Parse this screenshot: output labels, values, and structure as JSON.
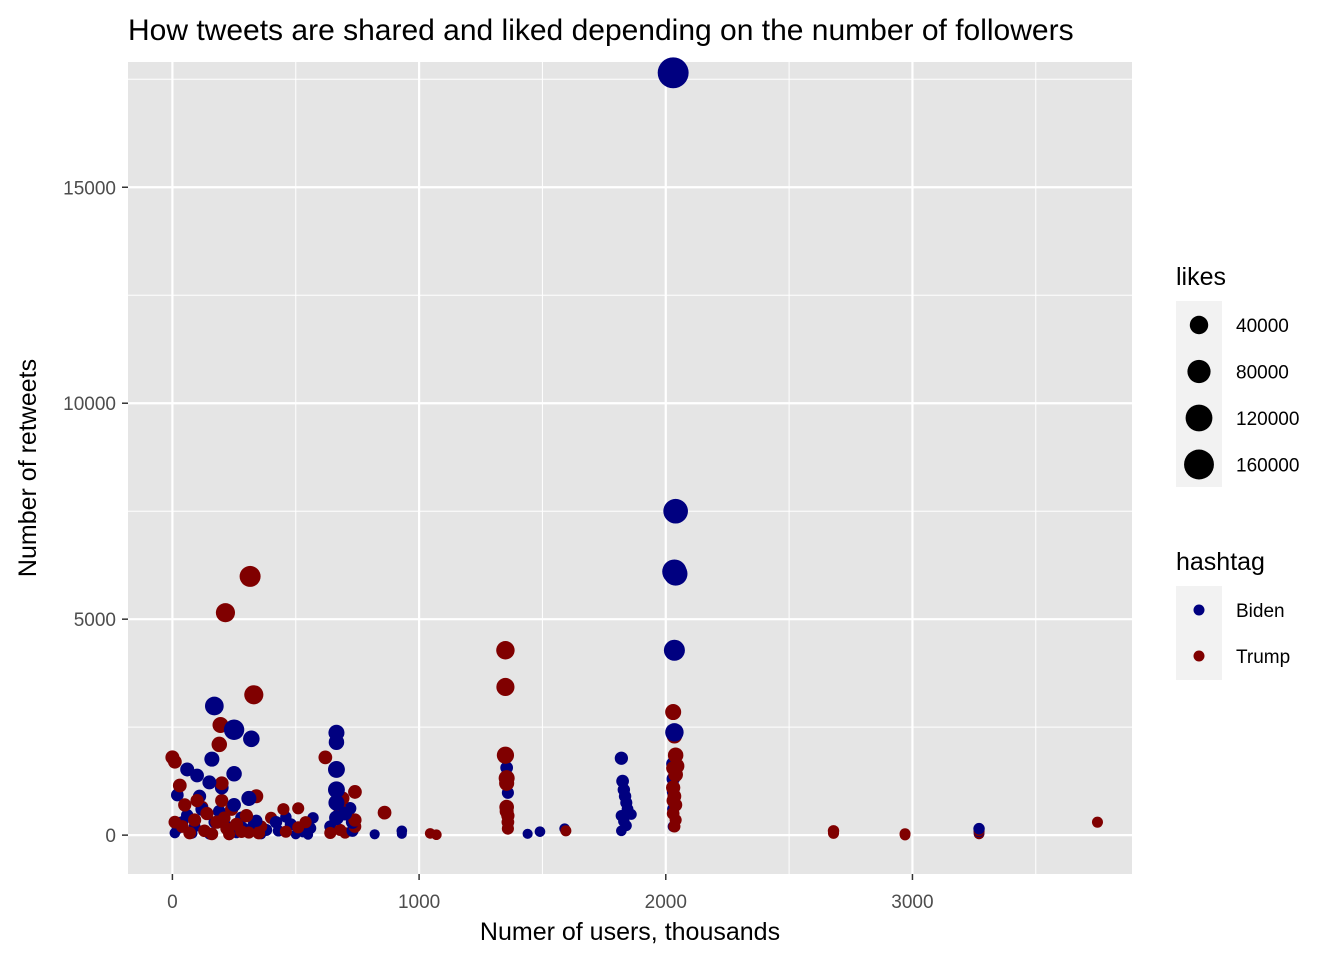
{
  "chart_data": {
    "type": "scatter",
    "title": "How tweets are shared and liked depending on the number of followers",
    "xlabel": "Numer of users, thousands",
    "ylabel": "Number of retweets",
    "xlim": [
      -180,
      3890
    ],
    "ylim": [
      -900,
      17900
    ],
    "x_ticks": [
      0,
      1000,
      2000,
      3000
    ],
    "y_ticks": [
      0,
      5000,
      10000,
      15000
    ],
    "grid": true,
    "legend_position": "right",
    "colors": {
      "Biden": "#000080",
      "Trump": "#800000",
      "panel": "#e5e5e5",
      "grid": "#ffffff"
    },
    "size_legend": {
      "title": "likes",
      "breaks": [
        40000,
        80000,
        120000,
        160000
      ]
    },
    "color_legend": {
      "title": "hashtag",
      "labels": [
        "Biden",
        "Trump"
      ]
    },
    "series": [
      {
        "name": "Biden",
        "points": [
          [
            2030,
            17650,
            175000
          ],
          [
            2040,
            7500,
            95000
          ],
          [
            2035,
            6100,
            92000
          ],
          [
            2040,
            6050,
            85000
          ],
          [
            2035,
            4280,
            60000
          ],
          [
            2035,
            2380,
            40000
          ],
          [
            2030,
            1650,
            15000
          ],
          [
            2030,
            1300,
            12000
          ],
          [
            2030,
            1000,
            10000
          ],
          [
            2030,
            600,
            8000
          ],
          [
            2030,
            200,
            5000
          ],
          [
            1820,
            1780,
            12000
          ],
          [
            1825,
            1250,
            10000
          ],
          [
            1830,
            1050,
            9000
          ],
          [
            1835,
            900,
            9000
          ],
          [
            1840,
            750,
            8000
          ],
          [
            1845,
            600,
            7000
          ],
          [
            1820,
            450,
            6000
          ],
          [
            1830,
            320,
            6000
          ],
          [
            1840,
            220,
            5000
          ],
          [
            1860,
            480,
            5000
          ],
          [
            1820,
            100,
            4000
          ],
          [
            1355,
            1560,
            10000
          ],
          [
            1355,
            1250,
            9000
          ],
          [
            1360,
            980,
            8000
          ],
          [
            1360,
            450,
            6000
          ],
          [
            1360,
            200,
            5000
          ],
          [
            1440,
            30,
            3000
          ],
          [
            1490,
            80,
            4000
          ],
          [
            1590,
            150,
            4000
          ],
          [
            930,
            100,
            4000
          ],
          [
            930,
            30,
            3000
          ],
          [
            820,
            20,
            3000
          ],
          [
            665,
            2370,
            25000
          ],
          [
            665,
            2150,
            22000
          ],
          [
            665,
            1520,
            30000
          ],
          [
            665,
            1050,
            30000
          ],
          [
            665,
            750,
            25000
          ],
          [
            665,
            400,
            18000
          ],
          [
            700,
            500,
            15000
          ],
          [
            730,
            300,
            12000
          ],
          [
            730,
            100,
            8000
          ],
          [
            720,
            620,
            10000
          ],
          [
            640,
            200,
            8000
          ],
          [
            170,
            2990,
            42000
          ],
          [
            250,
            2440,
            55000
          ],
          [
            320,
            2230,
            28000
          ],
          [
            250,
            1420,
            22000
          ],
          [
            160,
            1760,
            20000
          ],
          [
            60,
            1520,
            15000
          ],
          [
            100,
            1380,
            14000
          ],
          [
            150,
            1220,
            15000
          ],
          [
            200,
            1100,
            14000
          ],
          [
            110,
            900,
            12000
          ],
          [
            310,
            850,
            20000
          ],
          [
            20,
            930,
            10000
          ],
          [
            250,
            700,
            14000
          ],
          [
            120,
            600,
            12000
          ],
          [
            190,
            550,
            10000
          ],
          [
            60,
            460,
            9000
          ],
          [
            280,
            400,
            10000
          ],
          [
            340,
            330,
            9000
          ],
          [
            420,
            300,
            9000
          ],
          [
            480,
            250,
            8000
          ],
          [
            380,
            120,
            8000
          ],
          [
            290,
            150,
            7000
          ],
          [
            220,
            200,
            8000
          ],
          [
            90,
            200,
            7000
          ],
          [
            20,
            150,
            6000
          ],
          [
            40,
            300,
            8000
          ],
          [
            170,
            300,
            7000
          ],
          [
            330,
            250,
            8000
          ],
          [
            430,
            100,
            6000
          ],
          [
            530,
            80,
            6000
          ],
          [
            560,
            160,
            6000
          ],
          [
            10,
            50,
            4000
          ],
          [
            80,
            40,
            4000
          ],
          [
            150,
            20,
            4000
          ],
          [
            260,
            50,
            4000
          ],
          [
            360,
            20,
            3000
          ],
          [
            500,
            20,
            3000
          ],
          [
            550,
            10,
            3000
          ],
          [
            570,
            400,
            6000
          ],
          [
            460,
            420,
            6000
          ],
          [
            3270,
            150,
            6000
          ],
          [
            3270,
            80,
            5000
          ],
          [
            3270,
            30,
            4000
          ]
        ]
      },
      {
        "name": "Trump",
        "points": [
          [
            315,
            5990,
            60000
          ],
          [
            215,
            5150,
            45000
          ],
          [
            330,
            3250,
            45000
          ],
          [
            195,
            2550,
            25000
          ],
          [
            190,
            2100,
            22000
          ],
          [
            0,
            1800,
            15000
          ],
          [
            10,
            1700,
            14000
          ],
          [
            30,
            1150,
            14000
          ],
          [
            200,
            1200,
            14000
          ],
          [
            340,
            900,
            15000
          ],
          [
            100,
            800,
            12000
          ],
          [
            200,
            800,
            12000
          ],
          [
            50,
            700,
            12000
          ],
          [
            240,
            600,
            12000
          ],
          [
            140,
            500,
            12000
          ],
          [
            300,
            450,
            12000
          ],
          [
            90,
            350,
            12000
          ],
          [
            180,
            300,
            12000
          ],
          [
            260,
            250,
            12000
          ],
          [
            40,
            200,
            10000
          ],
          [
            220,
            150,
            10000
          ],
          [
            130,
            100,
            10000
          ],
          [
            280,
            80,
            10000
          ],
          [
            350,
            50,
            10000
          ],
          [
            10,
            300,
            10000
          ],
          [
            70,
            50,
            10000
          ],
          [
            160,
            30,
            10000
          ],
          [
            230,
            20,
            8000
          ],
          [
            310,
            60,
            8000
          ],
          [
            210,
            400,
            10000
          ],
          [
            120,
            650,
            10000
          ],
          [
            360,
            200,
            8000
          ],
          [
            450,
            600,
            8000
          ],
          [
            510,
            620,
            8000
          ],
          [
            540,
            300,
            8000
          ],
          [
            510,
            180,
            8000
          ],
          [
            460,
            80,
            8000
          ],
          [
            400,
            400,
            8000
          ],
          [
            620,
            1800,
            14000
          ],
          [
            740,
            1000,
            14000
          ],
          [
            690,
            850,
            14000
          ],
          [
            670,
            700,
            12000
          ],
          [
            680,
            600,
            12000
          ],
          [
            860,
            520,
            14000
          ],
          [
            740,
            350,
            12000
          ],
          [
            740,
            200,
            10000
          ],
          [
            680,
            120,
            8000
          ],
          [
            640,
            50,
            8000
          ],
          [
            700,
            50,
            6000
          ],
          [
            1350,
            4280,
            40000
          ],
          [
            1350,
            3430,
            38000
          ],
          [
            1350,
            1850,
            32000
          ],
          [
            1355,
            1320,
            25000
          ],
          [
            1355,
            1200,
            20000
          ],
          [
            1355,
            650,
            18000
          ],
          [
            1355,
            550,
            15000
          ],
          [
            1360,
            450,
            12000
          ],
          [
            1360,
            300,
            10000
          ],
          [
            1360,
            150,
            8000
          ],
          [
            1045,
            40,
            4000
          ],
          [
            1070,
            10,
            4000
          ],
          [
            1595,
            100,
            5000
          ],
          [
            2030,
            2850,
            25000
          ],
          [
            2035,
            2300,
            22000
          ],
          [
            2040,
            1850,
            22000
          ],
          [
            2045,
            1600,
            20000
          ],
          [
            2040,
            1400,
            18000
          ],
          [
            2030,
            1100,
            16000
          ],
          [
            2035,
            900,
            14000
          ],
          [
            2030,
            800,
            12000
          ],
          [
            2040,
            700,
            12000
          ],
          [
            2030,
            500,
            10000
          ],
          [
            2040,
            350,
            8000
          ],
          [
            2035,
            200,
            8000
          ],
          [
            2030,
            1550,
            15000
          ],
          [
            2680,
            100,
            6000
          ],
          [
            2680,
            40,
            5000
          ],
          [
            2970,
            30,
            5000
          ],
          [
            2970,
            0,
            4000
          ],
          [
            3270,
            100,
            5000
          ],
          [
            3270,
            30,
            4000
          ],
          [
            3750,
            300,
            5000
          ]
        ]
      }
    ]
  }
}
